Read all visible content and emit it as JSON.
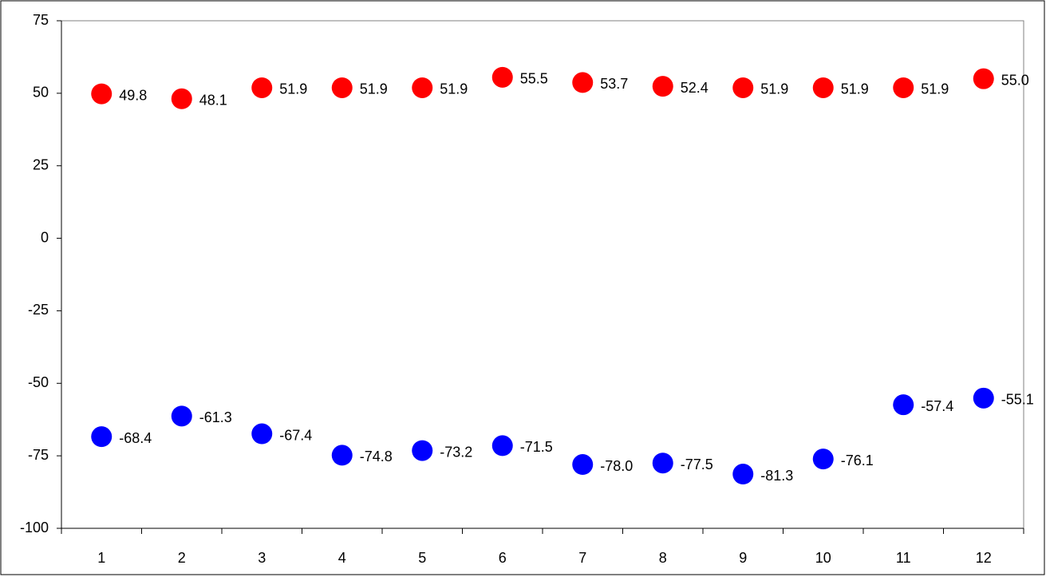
{
  "chart_data": {
    "type": "scatter",
    "categories": [
      "1",
      "2",
      "3",
      "4",
      "5",
      "6",
      "7",
      "8",
      "9",
      "10",
      "11",
      "12"
    ],
    "series": [
      {
        "color": "#ff0000",
        "values": [
          49.8,
          48.1,
          51.9,
          51.9,
          51.9,
          55.5,
          53.7,
          52.4,
          51.9,
          51.9,
          51.9,
          55.0
        ],
        "value_labels": [
          "49.8",
          "48.1",
          "51.9",
          "51.9",
          "51.9",
          "55.5",
          "53.7",
          "52.4",
          "51.9",
          "51.9",
          "51.9",
          "55.0"
        ]
      },
      {
        "color": "#0000ff",
        "values": [
          -68.4,
          -61.3,
          -67.4,
          -74.8,
          -73.2,
          -71.5,
          -78.0,
          -77.5,
          -81.3,
          -76.1,
          -57.4,
          -55.1
        ],
        "value_labels": [
          "-68.4",
          "-61.3",
          "-67.4",
          "-74.8",
          "-73.2",
          "-71.5",
          "-78.0",
          "-77.5",
          "-81.3",
          "-76.1",
          "-57.4",
          "-55.1"
        ]
      }
    ],
    "ylim": [
      -100,
      75
    ],
    "yticks": [
      -100,
      -75,
      -50,
      -25,
      0,
      25,
      50,
      75
    ],
    "grid": false
  }
}
